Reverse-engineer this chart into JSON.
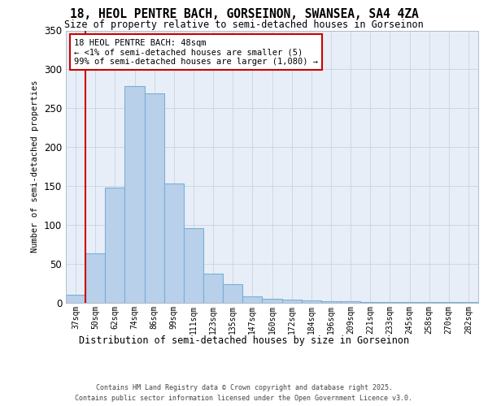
{
  "title_line1": "18, HEOL PENTRE BACH, GORSEINON, SWANSEA, SA4 4ZA",
  "title_line2": "Size of property relative to semi-detached houses in Gorseinon",
  "xlabel": "Distribution of semi-detached houses by size in Gorseinon",
  "ylabel": "Number of semi-detached properties",
  "categories": [
    "37sqm",
    "50sqm",
    "62sqm",
    "74sqm",
    "86sqm",
    "99sqm",
    "111sqm",
    "123sqm",
    "135sqm",
    "147sqm",
    "160sqm",
    "172sqm",
    "184sqm",
    "196sqm",
    "209sqm",
    "221sqm",
    "233sqm",
    "245sqm",
    "258sqm",
    "270sqm",
    "282sqm"
  ],
  "values": [
    10,
    63,
    148,
    278,
    269,
    153,
    96,
    37,
    24,
    8,
    5,
    4,
    3,
    2,
    2,
    1,
    1,
    1,
    1,
    1,
    1
  ],
  "bar_color": "#b8d0ea",
  "bar_edge_color": "#7aafd4",
  "highlight_color": "#cc0000",
  "annotation_title": "18 HEOL PENTRE BACH: 48sqm",
  "annotation_line2": "← <1% of semi-detached houses are smaller (5)",
  "annotation_line3": "99% of semi-detached houses are larger (1,080) →",
  "annotation_box_color": "#cc0000",
  "ylim": [
    0,
    350
  ],
  "yticks": [
    0,
    50,
    100,
    150,
    200,
    250,
    300,
    350
  ],
  "background_color": "#e8eef8",
  "footer_line1": "Contains HM Land Registry data © Crown copyright and database right 2025.",
  "footer_line2": "Contains public sector information licensed under the Open Government Licence v3.0."
}
